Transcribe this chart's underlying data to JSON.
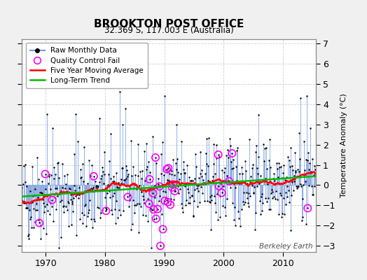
{
  "title": "BROOKTON POST OFFICE",
  "subtitle": "32.369 S, 117.003 E (Australia)",
  "ylabel": "Temperature Anomaly (°C)",
  "watermark": "Berkeley Earth",
  "xlim": [
    1966.0,
    2015.5
  ],
  "ylim": [
    -3.3,
    7.2
  ],
  "yticks": [
    -3,
    -2,
    -1,
    0,
    1,
    2,
    3,
    4,
    5,
    6,
    7
  ],
  "xticks": [
    1970,
    1980,
    1990,
    2000,
    2010
  ],
  "bg_color": "#f0f0f0",
  "plot_bg": "#ffffff",
  "grid_color": "#d0d0d0",
  "raw_line_color": "#7799dd",
  "raw_dot_color": "#000000",
  "moving_avg_color": "#ff0000",
  "trend_color": "#00bb00",
  "qc_fail_color": "#ff00ff",
  "seed": 42,
  "n_months": 594,
  "start_year": 1966.0,
  "trend_slope": 0.022,
  "trend_intercept": -0.12,
  "moving_avg_window": 60,
  "n_qc_fail": 30
}
